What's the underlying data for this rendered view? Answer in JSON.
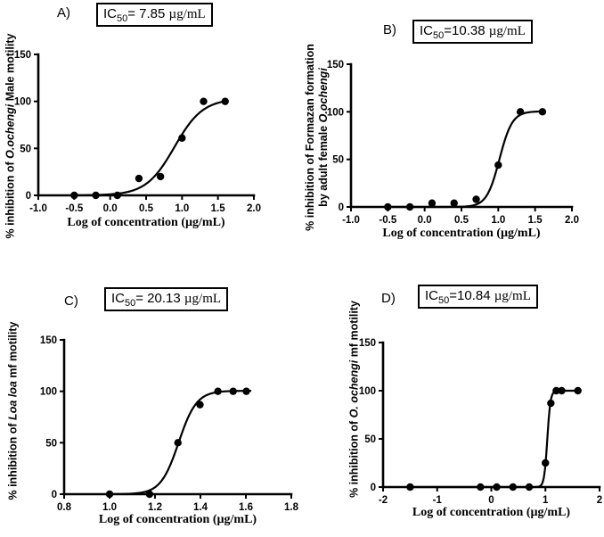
{
  "figure": {
    "background": "#ffffff",
    "ink": "#000000"
  },
  "chart_data": [
    {
      "type": "scatter",
      "panel": "A)",
      "title": "IC50= 7.85 µg/mL",
      "title_parts": {
        "prefix": "IC",
        "sub": "50",
        "rest": "= 7.85 ",
        "unit": "µg/mL"
      },
      "xlabel": "Log of concentration (µg/mL)",
      "ylabel": "% inhibition of O.ochengi Male motility",
      "ylabel_lines": [
        [
          {
            "t": "% inhibition of ",
            "i": false
          },
          {
            "t": "O.ochengi",
            "i": true
          },
          {
            "t": " Male motility",
            "i": false
          }
        ]
      ],
      "xlim": [
        -1.0,
        2.0
      ],
      "ylim": [
        0,
        150
      ],
      "xticks": [
        {
          "v": -1.0,
          "label": "-1.0"
        },
        {
          "v": -0.5,
          "label": "-0.5"
        },
        {
          "v": 0.0,
          "label": "0.0"
        },
        {
          "v": 0.5,
          "label": "0.5"
        },
        {
          "v": 1.0,
          "label": "1.0"
        },
        {
          "v": 1.5,
          "label": "1.5"
        },
        {
          "v": 2.0,
          "label": "2.0"
        }
      ],
      "yticks": [
        {
          "v": 0,
          "label": "0"
        },
        {
          "v": 50,
          "label": "50"
        },
        {
          "v": 100,
          "label": "100"
        },
        {
          "v": 150,
          "label": "150"
        }
      ],
      "x": [
        -0.5,
        -0.2,
        0.1,
        0.4,
        0.7,
        1.0,
        1.3,
        1.6
      ],
      "y": [
        0,
        0,
        0,
        18,
        20,
        61,
        100,
        100
      ],
      "curve": {
        "model": "sigmoid-dose-response",
        "logIC50": 0.895,
        "hill": 2.2,
        "top": 103,
        "bottom": 0,
        "x_range": [
          -0.52,
          1.63
        ]
      },
      "grid": false,
      "legend": "none"
    },
    {
      "type": "scatter",
      "panel": "B)",
      "title": "IC50=10.38 µg/mL",
      "title_parts": {
        "prefix": "IC",
        "sub": "50",
        "rest": "=10.38 ",
        "unit": "µg/mL"
      },
      "xlabel": "Log of concentration (µg/mL)",
      "ylabel": "% inhibition of Formazan formation by adult female O.ochengi",
      "ylabel_lines": [
        [
          {
            "t": "% inhibition of Formazan formation",
            "i": false
          }
        ],
        [
          {
            "t": "by adult female ",
            "i": false
          },
          {
            "t": "O.ochengi",
            "i": true
          }
        ]
      ],
      "xlim": [
        -1.0,
        2.0
      ],
      "ylim": [
        0,
        150
      ],
      "xticks": [
        {
          "v": -1.0,
          "label": "-1.0"
        },
        {
          "v": -0.5,
          "label": "-0.5"
        },
        {
          "v": 0.0,
          "label": "0.0"
        },
        {
          "v": 0.5,
          "label": "0.5"
        },
        {
          "v": 1.0,
          "label": "1.0"
        },
        {
          "v": 1.5,
          "label": "1.5"
        },
        {
          "v": 2.0,
          "label": "2.0"
        }
      ],
      "yticks": [
        {
          "v": 0,
          "label": "0"
        },
        {
          "v": 50,
          "label": "50"
        },
        {
          "v": 100,
          "label": "100"
        },
        {
          "v": 150,
          "label": "150"
        }
      ],
      "x": [
        -0.5,
        -0.2,
        0.1,
        0.4,
        0.7,
        1.0,
        1.3,
        1.6
      ],
      "y": [
        0,
        0,
        4,
        4,
        8,
        44,
        100,
        100
      ],
      "curve": {
        "model": "sigmoid-dose-response",
        "logIC50": 1.016,
        "hill": 5,
        "top": 100.5,
        "bottom": 0,
        "x_range": [
          -0.52,
          1.63
        ]
      },
      "grid": false,
      "legend": "none"
    },
    {
      "type": "scatter",
      "panel": "C)",
      "title": "IC50= 20.13 µg/mL",
      "title_parts": {
        "prefix": "IC",
        "sub": "50",
        "rest": "= 20.13 ",
        "unit": "µg/mL"
      },
      "xlabel": "Log of concentration (µg/mL)",
      "ylabel": "% inhibition of Loa loa mf motility",
      "ylabel_lines": [
        [
          {
            "t": "% inhibition of ",
            "i": false
          },
          {
            "t": "Loa loa",
            "i": true
          },
          {
            "t": " mf motility",
            "i": false
          }
        ]
      ],
      "xlim": [
        0.8,
        1.8
      ],
      "ylim": [
        0,
        150
      ],
      "xticks": [
        {
          "v": 0.8,
          "label": "0.8"
        },
        {
          "v": 1.0,
          "label": "1.0"
        },
        {
          "v": 1.2,
          "label": "1.2"
        },
        {
          "v": 1.4,
          "label": "1.4"
        },
        {
          "v": 1.6,
          "label": "1.6"
        },
        {
          "v": 1.8,
          "label": "1.8"
        }
      ],
      "yticks": [
        {
          "v": 0,
          "label": "0"
        },
        {
          "v": 50,
          "label": "50"
        },
        {
          "v": 100,
          "label": "100"
        },
        {
          "v": 150,
          "label": "150"
        }
      ],
      "x": [
        1.0,
        1.176,
        1.301,
        1.398,
        1.477,
        1.544,
        1.602
      ],
      "y": [
        0,
        0,
        50,
        87,
        100,
        100,
        100
      ],
      "curve": {
        "model": "sigmoid-dose-response",
        "logIC50": 1.304,
        "hill": 11,
        "top": 100.5,
        "bottom": 0,
        "x_range": [
          0.99,
          1.62
        ]
      },
      "grid": false,
      "legend": "none"
    },
    {
      "type": "scatter",
      "panel": "D)",
      "title": "IC50=10.84 µg/mL",
      "title_parts": {
        "prefix": "IC",
        "sub": "50",
        "rest": "=10.84 ",
        "unit": "µg/mL"
      },
      "xlabel": "Log of concentration (µg/mL)",
      "ylabel": "% inhibition of O. ochengi mf motility",
      "ylabel_lines": [
        [
          {
            "t": "% inhibition of ",
            "i": false
          },
          {
            "t": "O. ochengi",
            "i": true
          },
          {
            "t": " mf motility",
            "i": false
          }
        ]
      ],
      "xlim": [
        -2,
        2
      ],
      "ylim": [
        0,
        150
      ],
      "xticks": [
        {
          "v": -2,
          "label": "-2"
        },
        {
          "v": -1,
          "label": "-1"
        },
        {
          "v": 0,
          "label": "0"
        },
        {
          "v": 1,
          "label": "1"
        },
        {
          "v": 2,
          "label": "2"
        }
      ],
      "yticks": [
        {
          "v": 0,
          "label": "0"
        },
        {
          "v": 50,
          "label": "50"
        },
        {
          "v": 100,
          "label": "100"
        },
        {
          "v": 150,
          "label": "150"
        }
      ],
      "x": [
        -1.5,
        -0.2,
        0.1,
        0.4,
        0.7,
        1.0,
        1.1,
        1.2,
        1.3,
        1.6
      ],
      "y": [
        0,
        0,
        0,
        0,
        0,
        25,
        87,
        100,
        100,
        100
      ],
      "curve": {
        "model": "sigmoid-dose-response",
        "logIC50": 1.035,
        "hill": 15,
        "top": 100,
        "bottom": 0,
        "x_range": [
          -1.52,
          1.62
        ]
      },
      "grid": false,
      "legend": "none"
    }
  ]
}
